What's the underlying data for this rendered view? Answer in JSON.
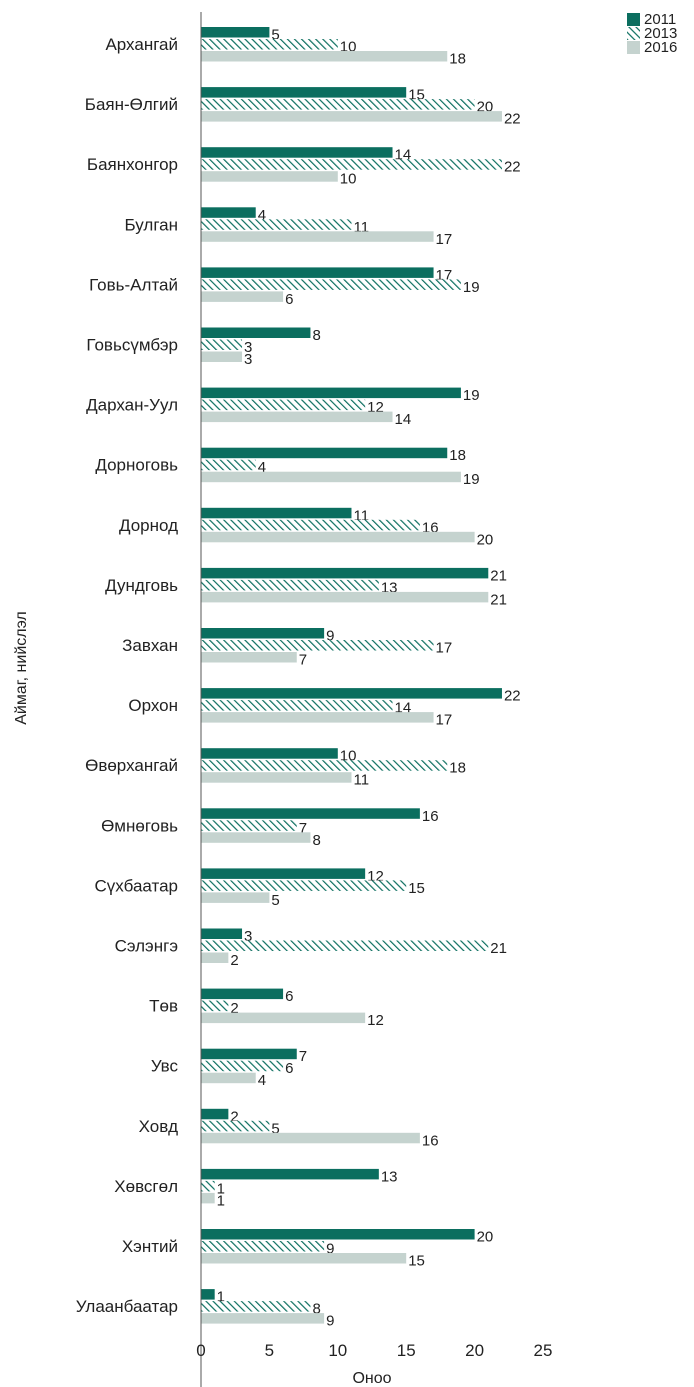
{
  "chart_data": {
    "type": "bar",
    "orientation": "horizontal",
    "categories": [
      "Архангай",
      "Баян-Өлгий",
      "Баянхонгор",
      "Булган",
      "Говь-Алтай",
      "Говьсүмбэр",
      "Дархан-Уул",
      "Дорноговь",
      "Дорнод",
      "Дундговь",
      "Завхан",
      "Орхон",
      "Өвөрхангай",
      "Өмнөговь",
      "Сүхбаатар",
      "Сэлэнгэ",
      "Төв",
      "Увс",
      "Ховд",
      "Хөвсгөл",
      "Хэнтий",
      "Улаанбаатар"
    ],
    "series": [
      {
        "name": "2011",
        "color": "#0b6e5f",
        "pattern": "solid",
        "values": [
          5,
          15,
          14,
          4,
          17,
          8,
          19,
          18,
          11,
          21,
          9,
          22,
          10,
          16,
          12,
          3,
          6,
          7,
          2,
          13,
          20,
          1
        ]
      },
      {
        "name": "2013",
        "color": "#0b6e5f",
        "pattern": "hatched",
        "values": [
          10,
          20,
          22,
          11,
          19,
          3,
          12,
          4,
          16,
          13,
          17,
          14,
          18,
          7,
          15,
          21,
          2,
          6,
          5,
          1,
          9,
          8
        ]
      },
      {
        "name": "2016",
        "color": "#c5d3cf",
        "pattern": "solid",
        "values": [
          18,
          22,
          10,
          17,
          6,
          3,
          14,
          19,
          20,
          21,
          7,
          17,
          11,
          8,
          5,
          2,
          12,
          4,
          16,
          1,
          15,
          9
        ]
      }
    ],
    "xlabel": "Оноо",
    "ylabel": "Аймаг, нийслэл",
    "xlim": [
      0,
      25
    ],
    "xticks": [
      "0",
      "5",
      "10",
      "15",
      "20",
      "25"
    ],
    "grid": false,
    "legend_position": "top-right"
  }
}
